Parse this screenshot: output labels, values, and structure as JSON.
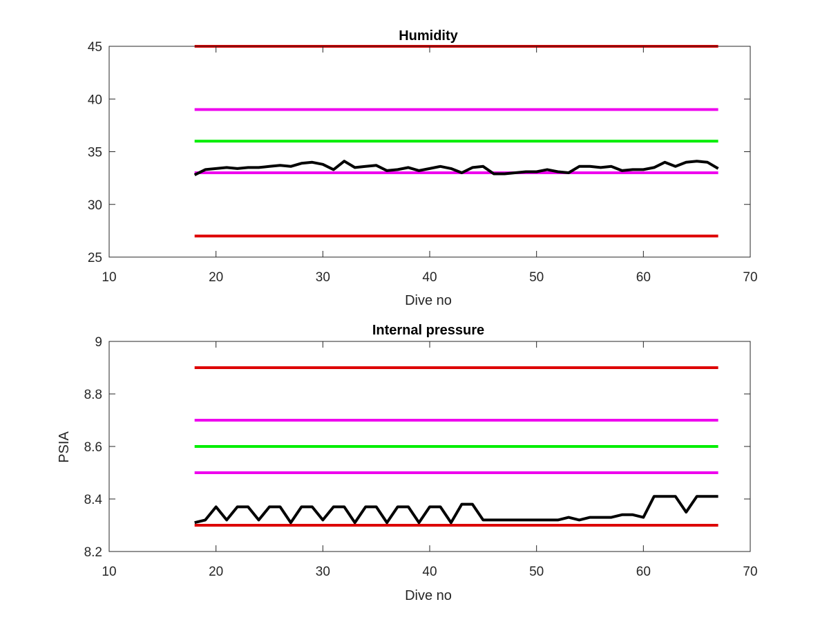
{
  "colors": {
    "limit_red": "#dd0000",
    "limit_magenta": "#ee00ee",
    "target_green": "#00ee00",
    "data_black": "#000000",
    "axis": "#262626"
  },
  "chart_data": [
    {
      "type": "line",
      "title": "Humidity",
      "xlabel": "Dive no",
      "ylabel": "",
      "xlim": [
        10,
        70
      ],
      "ylim": [
        25,
        45
      ],
      "xticks": [
        10,
        20,
        30,
        40,
        50,
        60,
        70
      ],
      "yticks": [
        25,
        30,
        35,
        40,
        45
      ],
      "grid": false,
      "series": [
        {
          "color": "#dd0000",
          "x": [
            18,
            67
          ],
          "y": [
            45,
            45
          ]
        },
        {
          "color": "#ee00ee",
          "x": [
            18,
            67
          ],
          "y": [
            39,
            39
          ]
        },
        {
          "color": "#00ee00",
          "x": [
            18,
            67
          ],
          "y": [
            36,
            36
          ]
        },
        {
          "color": "#ee00ee",
          "x": [
            18,
            67
          ],
          "y": [
            33,
            33
          ]
        },
        {
          "color": "#dd0000",
          "x": [
            18,
            67
          ],
          "y": [
            27,
            27
          ]
        },
        {
          "color": "#000000",
          "x": [
            18,
            19,
            20,
            21,
            22,
            23,
            24,
            25,
            26,
            27,
            28,
            29,
            30,
            31,
            32,
            33,
            34,
            35,
            36,
            37,
            38,
            39,
            40,
            41,
            42,
            43,
            44,
            45,
            46,
            47,
            48,
            49,
            50,
            51,
            52,
            53,
            54,
            55,
            56,
            57,
            58,
            59,
            60,
            61,
            62,
            63,
            64,
            65,
            66,
            67
          ],
          "y": [
            32.8,
            33.3,
            33.4,
            33.5,
            33.4,
            33.5,
            33.5,
            33.6,
            33.7,
            33.6,
            33.9,
            34.0,
            33.8,
            33.3,
            34.1,
            33.5,
            33.6,
            33.7,
            33.2,
            33.3,
            33.5,
            33.2,
            33.4,
            33.6,
            33.4,
            33.0,
            33.5,
            33.6,
            32.9,
            32.9,
            33.0,
            33.1,
            33.1,
            33.3,
            33.1,
            33.0,
            33.6,
            33.6,
            33.5,
            33.6,
            33.2,
            33.3,
            33.3,
            33.5,
            34.0,
            33.6,
            34.0,
            34.1,
            34.0,
            33.4
          ]
        }
      ]
    },
    {
      "type": "line",
      "title": "Internal pressure",
      "xlabel": "Dive no",
      "ylabel": "PSIA",
      "xlim": [
        10,
        70
      ],
      "ylim": [
        8.2,
        9.0
      ],
      "xticks": [
        10,
        20,
        30,
        40,
        50,
        60,
        70
      ],
      "yticks": [
        "8.2",
        "8.4",
        "8.6",
        "8.8",
        "9"
      ],
      "grid": false,
      "series": [
        {
          "color": "#dd0000",
          "x": [
            18,
            67
          ],
          "y": [
            8.9,
            8.9
          ]
        },
        {
          "color": "#ee00ee",
          "x": [
            18,
            67
          ],
          "y": [
            8.7,
            8.7
          ]
        },
        {
          "color": "#00ee00",
          "x": [
            18,
            67
          ],
          "y": [
            8.6,
            8.6
          ]
        },
        {
          "color": "#ee00ee",
          "x": [
            18,
            67
          ],
          "y": [
            8.5,
            8.5
          ]
        },
        {
          "color": "#dd0000",
          "x": [
            18,
            67
          ],
          "y": [
            8.3,
            8.3
          ]
        },
        {
          "color": "#000000",
          "x": [
            18,
            19,
            20,
            21,
            22,
            23,
            24,
            25,
            26,
            27,
            28,
            29,
            30,
            31,
            32,
            33,
            34,
            35,
            36,
            37,
            38,
            39,
            40,
            41,
            42,
            43,
            44,
            45,
            46,
            47,
            48,
            49,
            50,
            51,
            52,
            53,
            54,
            55,
            56,
            57,
            58,
            59,
            60,
            61,
            62,
            63,
            64,
            65,
            66,
            67
          ],
          "y": [
            8.31,
            8.32,
            8.37,
            8.32,
            8.37,
            8.37,
            8.32,
            8.37,
            8.37,
            8.31,
            8.37,
            8.37,
            8.32,
            8.37,
            8.37,
            8.31,
            8.37,
            8.37,
            8.31,
            8.37,
            8.37,
            8.31,
            8.37,
            8.37,
            8.31,
            8.38,
            8.38,
            8.32,
            8.32,
            8.32,
            8.32,
            8.32,
            8.32,
            8.32,
            8.32,
            8.33,
            8.32,
            8.33,
            8.33,
            8.33,
            8.34,
            8.34,
            8.33,
            8.41,
            8.41,
            8.41,
            8.35,
            8.41,
            8.41,
            8.41
          ]
        }
      ]
    }
  ]
}
